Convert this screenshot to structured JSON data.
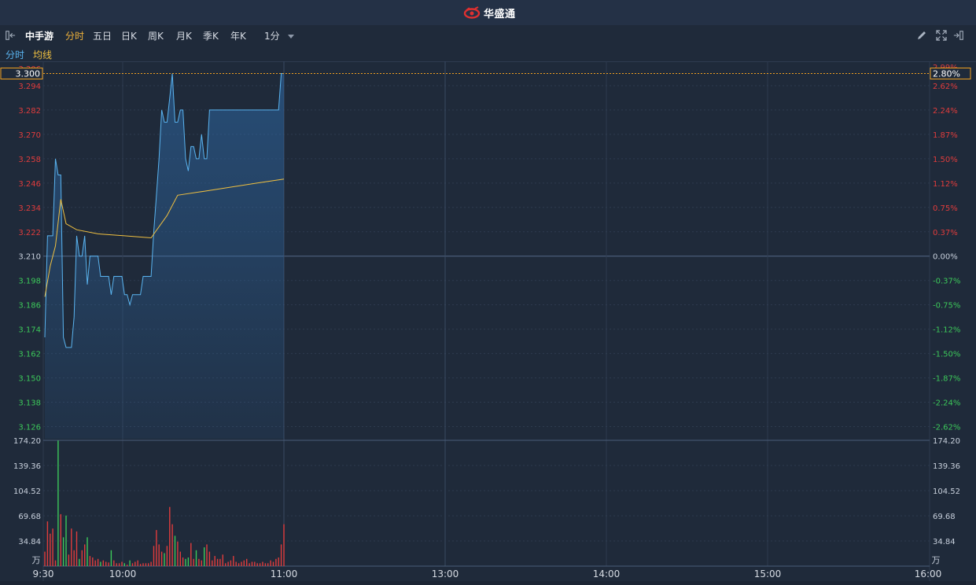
{
  "app": {
    "brand": "华盛通"
  },
  "toolbar": {
    "stock_name": "中手游",
    "tabs": [
      "分时",
      "五日",
      "日K",
      "周K",
      "月K",
      "季K",
      "年K"
    ],
    "active_tab": "分时",
    "interval": "1分"
  },
  "legend": {
    "intraday": "分时",
    "avg": "均线"
  },
  "colors": {
    "price_line": "#5ab4f0",
    "avg_line": "#f0c040",
    "up": "#e03c3c",
    "down": "#3cc85a",
    "accent": "#f0a020"
  },
  "crosshair": {
    "price_label": "3.300",
    "pct_label": "2.80%"
  },
  "price_axis": {
    "top_partial": "3.306",
    "left": [
      "3.294",
      "3.282",
      "3.270",
      "3.258",
      "3.246",
      "3.234",
      "3.222",
      "3.210",
      "3.198",
      "3.186",
      "3.174",
      "3.162",
      "3.150",
      "3.138",
      "3.126"
    ],
    "right_top_partial": "2.99%",
    "right": [
      "2.62%",
      "2.24%",
      "1.87%",
      "1.50%",
      "1.12%",
      "0.75%",
      "0.37%",
      "0.00%",
      "-0.37%",
      "-0.75%",
      "-1.12%",
      "-1.50%",
      "-1.87%",
      "-2.24%",
      "-2.62%"
    ]
  },
  "volume_axis": {
    "labels": [
      "174.20",
      "139.36",
      "104.52",
      "69.68",
      "34.84"
    ],
    "unit": "万"
  },
  "time_axis": [
    "9:30",
    "10:00",
    "11:00",
    "13:00",
    "14:00",
    "15:00",
    "16:00"
  ],
  "chart_data": {
    "type": "line",
    "title": "中手游 分时",
    "ylim": [
      3.12,
      3.306
    ],
    "prev_close": 3.21,
    "x_unit": "minutes since 9:30",
    "series": [
      {
        "name": "分时",
        "x": [
          0,
          1,
          2,
          3,
          4,
          5,
          6,
          7,
          8,
          9,
          10,
          11,
          12,
          13,
          14,
          15,
          16,
          17,
          18,
          19,
          20,
          21,
          22,
          23,
          24,
          25,
          26,
          27,
          28,
          29,
          30,
          31,
          32,
          33,
          34,
          35,
          36,
          37,
          38,
          39,
          40,
          41,
          42,
          43,
          44,
          45,
          46,
          47,
          48,
          49,
          50,
          51,
          52,
          53,
          54,
          55,
          56,
          57,
          58,
          59,
          60,
          61,
          62,
          63,
          64,
          65,
          66,
          67,
          68,
          69,
          70,
          71,
          72,
          73,
          74,
          75,
          76,
          77,
          78,
          79,
          80,
          81,
          82,
          83,
          84,
          85,
          86,
          87,
          88,
          89,
          90
        ],
        "values": [
          3.17,
          3.22,
          3.22,
          3.22,
          3.258,
          3.25,
          3.25,
          3.17,
          3.165,
          3.165,
          3.165,
          3.18,
          3.22,
          3.21,
          3.21,
          3.22,
          3.196,
          3.21,
          3.21,
          3.21,
          3.21,
          3.2,
          3.2,
          3.2,
          3.2,
          3.191,
          3.2,
          3.2,
          3.2,
          3.2,
          3.191,
          3.191,
          3.186,
          3.191,
          3.191,
          3.191,
          3.191,
          3.2,
          3.2,
          3.2,
          3.2,
          3.222,
          3.24,
          3.258,
          3.282,
          3.276,
          3.276,
          3.288,
          3.3,
          3.276,
          3.276,
          3.282,
          3.282,
          3.258,
          3.252,
          3.264,
          3.264,
          3.258,
          3.258,
          3.27,
          3.258,
          3.258,
          3.282,
          3.282,
          3.282,
          3.282,
          3.282,
          3.282,
          3.282,
          3.282,
          3.282,
          3.282,
          3.282,
          3.282,
          3.282,
          3.282,
          3.282,
          3.282,
          3.282,
          3.282,
          3.282,
          3.282,
          3.282,
          3.282,
          3.282,
          3.282,
          3.282,
          3.282,
          3.282,
          3.3,
          3.3
        ]
      },
      {
        "name": "均线",
        "x": [
          0,
          2,
          4,
          6,
          8,
          12,
          20,
          30,
          40,
          46,
          50,
          60,
          70,
          80,
          90
        ],
        "values": [
          3.19,
          3.205,
          3.215,
          3.238,
          3.226,
          3.223,
          3.221,
          3.22,
          3.219,
          3.23,
          3.24,
          3.242,
          3.244,
          3.246,
          3.248
        ]
      }
    ],
    "volume": {
      "ylim": [
        0,
        174.2
      ],
      "unit": "万",
      "values": [
        20,
        62,
        45,
        52,
        8,
        174,
        72,
        40,
        70,
        16,
        52,
        22,
        48,
        10,
        22,
        30,
        40,
        14,
        12,
        8,
        10,
        6,
        8,
        6,
        5,
        22,
        8,
        4,
        4,
        6,
        4,
        2,
        8,
        4,
        6,
        8,
        3,
        4,
        4,
        4,
        6,
        28,
        50,
        30,
        20,
        18,
        28,
        82,
        58,
        42,
        34,
        20,
        12,
        10,
        12,
        32,
        10,
        22,
        10,
        8,
        26,
        30,
        20,
        8,
        14,
        10,
        10,
        16,
        4,
        6,
        8,
        14,
        6,
        4,
        6,
        8,
        10,
        4,
        6,
        6,
        4,
        4,
        6,
        4,
        4,
        8,
        6,
        10,
        12,
        30,
        58
      ]
    }
  }
}
